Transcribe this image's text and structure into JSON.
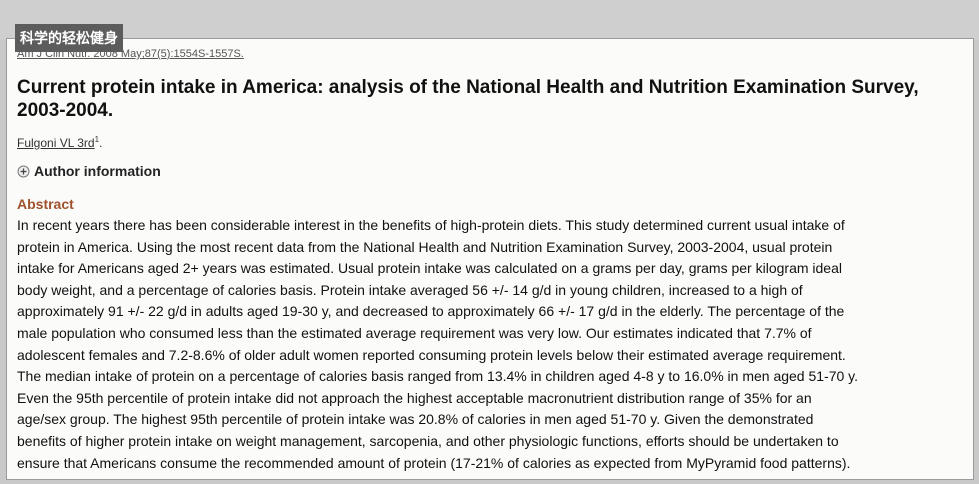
{
  "watermark": "科学的轻松健身",
  "citation": "Am J Clin Nutr. 2008 May;87(5):1554S-1557S.",
  "title": "Current protein intake in America: analysis of the National Health and Nutrition Examination Survey, 2003-2004.",
  "author": {
    "name": "Fulgoni VL 3rd",
    "affiliation_mark": "1",
    "end": "."
  },
  "author_information": "Author information",
  "abstract": {
    "heading": "Abstract",
    "lines": [
      "In recent years there has been considerable interest in the benefits of high-protein diets. This study determined current usual intake of",
      "protein in America. Using the most recent data from the National Health and Nutrition Examination Survey, 2003-2004, usual protein",
      "intake for Americans aged 2+ years was estimated. Usual protein intake was calculated on a grams per day, grams per kilogram ideal",
      "body weight, and a percentage of calories basis. Protein intake averaged 56 +/- 14 g/d in young children, increased to a high of",
      "approximately 91 +/- 22 g/d in adults aged 19-30 y, and decreased to approximately 66 +/- 17 g/d in the elderly. The percentage of the",
      "male population who consumed less than the estimated average requirement was very low. Our estimates indicated that 7.7% of",
      "adolescent females and 7.2-8.6% of older adult women reported consuming protein levels below their estimated average requirement.",
      "The median intake of protein on a percentage of calories basis ranged from 13.4% in children aged 4-8 y to 16.0% in men aged 51-70 y.",
      "Even the 95th percentile of protein intake did not approach the highest acceptable macronutrient distribution range of 35% for an",
      "age/sex group. The highest 95th percentile of protein intake was 20.8% of calories in men aged 51-70 y. Given the demonstrated",
      "benefits of higher protein intake on weight management, sarcopenia, and other physiologic functions, efforts should be undertaken to",
      "ensure that Americans consume the recommended amount of protein (17-21% of calories as expected from MyPyramid food patterns)."
    ]
  }
}
